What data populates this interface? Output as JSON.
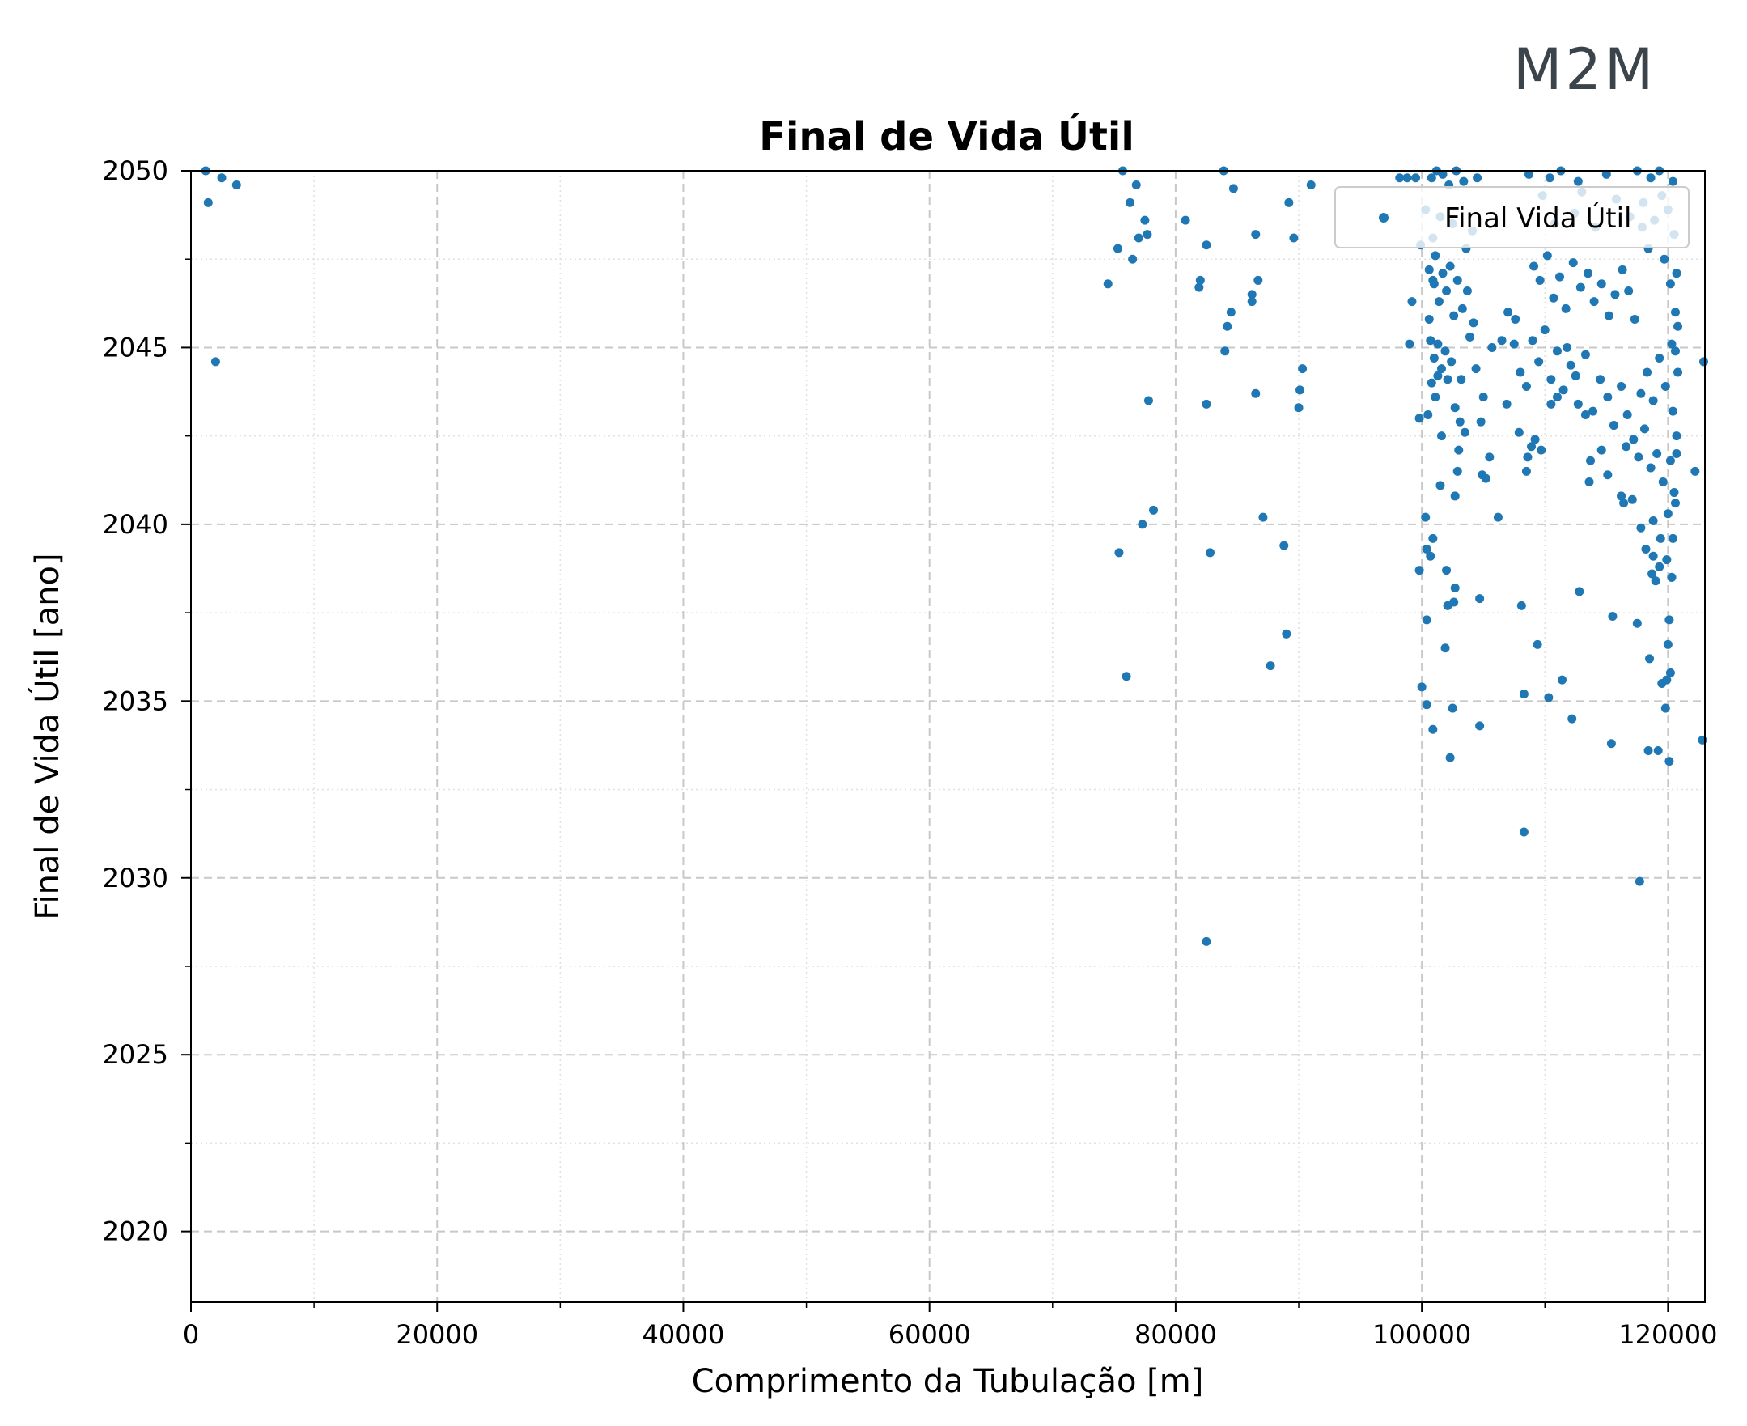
{
  "logo": {
    "text": "M2M"
  },
  "chart_data": {
    "type": "scatter",
    "title": "Final de Vida Útil",
    "xlabel": "Comprimento da Tubulação [m]",
    "ylabel": "Final de Vida Útil [ano]",
    "xlim": [
      0,
      123000
    ],
    "ylim": [
      2018,
      2050
    ],
    "xticks": [
      0,
      20000,
      40000,
      60000,
      80000,
      100000,
      120000
    ],
    "yticks": [
      2020,
      2025,
      2030,
      2035,
      2040,
      2045,
      2050
    ],
    "grid": true,
    "legend_position": "top-right",
    "color": "#1f77b4",
    "series": [
      {
        "name": "Final Vida Útil",
        "points": [
          [
            1200,
            2050
          ],
          [
            2500,
            2049.8
          ],
          [
            3700,
            2049.6
          ],
          [
            1400,
            2049.1
          ],
          [
            2000,
            2044.6
          ],
          [
            74500,
            2046.8
          ],
          [
            75300,
            2047.8
          ],
          [
            75700,
            2050
          ],
          [
            76300,
            2049.1
          ],
          [
            76500,
            2047.5
          ],
          [
            76800,
            2049.6
          ],
          [
            77000,
            2048.1
          ],
          [
            77500,
            2048.6
          ],
          [
            77700,
            2048.2
          ],
          [
            77800,
            2043.5
          ],
          [
            78200,
            2040.4
          ],
          [
            77300,
            2040
          ],
          [
            75400,
            2039.2
          ],
          [
            76000,
            2035.7
          ],
          [
            80800,
            2048.6
          ],
          [
            81900,
            2046.7
          ],
          [
            82000,
            2046.9
          ],
          [
            82500,
            2047.9
          ],
          [
            82500,
            2043.4
          ],
          [
            82800,
            2039.2
          ],
          [
            82500,
            2028.2
          ],
          [
            83900,
            2050
          ],
          [
            84200,
            2045.6
          ],
          [
            84500,
            2046
          ],
          [
            84000,
            2044.9
          ],
          [
            84700,
            2049.5
          ],
          [
            86200,
            2046.5
          ],
          [
            86200,
            2046.3
          ],
          [
            86500,
            2048.2
          ],
          [
            86700,
            2046.9
          ],
          [
            86500,
            2043.7
          ],
          [
            87100,
            2040.2
          ],
          [
            87700,
            2036
          ],
          [
            88800,
            2039.4
          ],
          [
            89000,
            2036.9
          ],
          [
            89200,
            2049.1
          ],
          [
            89600,
            2048.1
          ],
          [
            90000,
            2043.3
          ],
          [
            90100,
            2043.8
          ],
          [
            90300,
            2044.4
          ],
          [
            91000,
            2049.6
          ],
          [
            98200,
            2049.8
          ],
          [
            98800,
            2049.8
          ],
          [
            99200,
            2046.3
          ],
          [
            99000,
            2045.1
          ],
          [
            99500,
            2049.8
          ],
          [
            99800,
            2043
          ],
          [
            99800,
            2038.7
          ],
          [
            100000,
            2035.4
          ],
          [
            100300,
            2040.2
          ],
          [
            100400,
            2039.3
          ],
          [
            100400,
            2037.3
          ],
          [
            100400,
            2034.9
          ],
          [
            100700,
            2039.1
          ],
          [
            100900,
            2034.2
          ],
          [
            100900,
            2039.6
          ],
          [
            100500,
            2043.1
          ],
          [
            100600,
            2045.8
          ],
          [
            101000,
            2046.8
          ],
          [
            101300,
            2044.2
          ],
          [
            101500,
            2041.1
          ],
          [
            101600,
            2042.5
          ],
          [
            101900,
            2036.5
          ],
          [
            102000,
            2038.7
          ],
          [
            102100,
            2037.7
          ],
          [
            102300,
            2033.4
          ],
          [
            102500,
            2034.8
          ],
          [
            102600,
            2037.8
          ],
          [
            102700,
            2038.2
          ],
          [
            102700,
            2040.8
          ],
          [
            102900,
            2041.5
          ],
          [
            103000,
            2042.1
          ],
          [
            103200,
            2044.1
          ],
          [
            103500,
            2042.6
          ],
          [
            104700,
            2037.9
          ],
          [
            104700,
            2034.3
          ],
          [
            104800,
            2042.9
          ],
          [
            104900,
            2041.4
          ],
          [
            105200,
            2041.3
          ],
          [
            105500,
            2041.9
          ],
          [
            105700,
            2045
          ],
          [
            106200,
            2040.2
          ],
          [
            106500,
            2045.2
          ],
          [
            107000,
            2046
          ],
          [
            107600,
            2045.8
          ],
          [
            108100,
            2037.7
          ],
          [
            108300,
            2035.2
          ],
          [
            108300,
            2031.3
          ],
          [
            108500,
            2041.5
          ],
          [
            108600,
            2041.9
          ],
          [
            108900,
            2042.2
          ],
          [
            109200,
            2042.4
          ],
          [
            109400,
            2036.6
          ],
          [
            109700,
            2042.1
          ],
          [
            110300,
            2035.1
          ],
          [
            110500,
            2043.4
          ],
          [
            111000,
            2043.6
          ],
          [
            111400,
            2035.6
          ],
          [
            111800,
            2045
          ],
          [
            112200,
            2034.5
          ],
          [
            112800,
            2038.1
          ],
          [
            112500,
            2044.2
          ],
          [
            113300,
            2043.1
          ],
          [
            113600,
            2041.2
          ],
          [
            113700,
            2041.8
          ],
          [
            114600,
            2042.1
          ],
          [
            115100,
            2041.4
          ],
          [
            115400,
            2033.8
          ],
          [
            115500,
            2037.4
          ],
          [
            116200,
            2040.8
          ],
          [
            116400,
            2040.6
          ],
          [
            117500,
            2037.2
          ],
          [
            117700,
            2029.9
          ],
          [
            117800,
            2039.9
          ],
          [
            118400,
            2033.6
          ],
          [
            118500,
            2036.2
          ],
          [
            118800,
            2040.1
          ],
          [
            118800,
            2039.1
          ],
          [
            119000,
            2038.4
          ],
          [
            119200,
            2033.6
          ],
          [
            119300,
            2038.8
          ],
          [
            119500,
            2035.5
          ],
          [
            119800,
            2034.8
          ],
          [
            119900,
            2035.6
          ],
          [
            120000,
            2036.6
          ],
          [
            120100,
            2037.3
          ],
          [
            120200,
            2035.8
          ],
          [
            120300,
            2038.5
          ],
          [
            120400,
            2039.6
          ],
          [
            120600,
            2040.6
          ],
          [
            120700,
            2042
          ],
          [
            120800,
            2044.3
          ],
          [
            120100,
            2033.3
          ],
          [
            122200,
            2041.5
          ],
          [
            122900,
            2044.6
          ],
          [
            122800,
            2033.9
          ],
          [
            100800,
            2049.8
          ],
          [
            101200,
            2050
          ],
          [
            101700,
            2049.9
          ],
          [
            102200,
            2049.6
          ],
          [
            102800,
            2050
          ],
          [
            103400,
            2049.7
          ],
          [
            104500,
            2049.8
          ],
          [
            108700,
            2049.9
          ],
          [
            110400,
            2049.8
          ],
          [
            111300,
            2050
          ],
          [
            112700,
            2049.7
          ],
          [
            115000,
            2049.9
          ],
          [
            117500,
            2050
          ],
          [
            118600,
            2049.8
          ],
          [
            119300,
            2050
          ],
          [
            120400,
            2049.7
          ],
          [
            100600,
            2047.2
          ],
          [
            100900,
            2046.9
          ],
          [
            101100,
            2047.6
          ],
          [
            101400,
            2046.3
          ],
          [
            101700,
            2047.1
          ],
          [
            102000,
            2046.6
          ],
          [
            102300,
            2047.3
          ],
          [
            102600,
            2045.9
          ],
          [
            102900,
            2046.9
          ],
          [
            103300,
            2046.1
          ],
          [
            103700,
            2046.6
          ],
          [
            104200,
            2045.7
          ],
          [
            100700,
            2045.2
          ],
          [
            101000,
            2044.7
          ],
          [
            101300,
            2045.1
          ],
          [
            101600,
            2044.4
          ],
          [
            101900,
            2044.9
          ],
          [
            102100,
            2044.1
          ],
          [
            102400,
            2044.6
          ],
          [
            100800,
            2044
          ],
          [
            101100,
            2043.6
          ],
          [
            102700,
            2043.3
          ],
          [
            103100,
            2042.9
          ],
          [
            109100,
            2047.3
          ],
          [
            109600,
            2046.9
          ],
          [
            110200,
            2047.6
          ],
          [
            110700,
            2046.4
          ],
          [
            111200,
            2047
          ],
          [
            111700,
            2046.1
          ],
          [
            112300,
            2047.4
          ],
          [
            112900,
            2046.7
          ],
          [
            113500,
            2047.1
          ],
          [
            114000,
            2046.3
          ],
          [
            114600,
            2046.8
          ],
          [
            115200,
            2045.9
          ],
          [
            115700,
            2046.5
          ],
          [
            116300,
            2047.2
          ],
          [
            116800,
            2046.6
          ],
          [
            117300,
            2045.8
          ],
          [
            109000,
            2045.2
          ],
          [
            109500,
            2044.6
          ],
          [
            110000,
            2045.5
          ],
          [
            110500,
            2044.1
          ],
          [
            111000,
            2044.9
          ],
          [
            111500,
            2043.8
          ],
          [
            112100,
            2044.5
          ],
          [
            112700,
            2043.4
          ],
          [
            113300,
            2044.8
          ],
          [
            113900,
            2043.2
          ],
          [
            114500,
            2044.1
          ],
          [
            115100,
            2043.6
          ],
          [
            115600,
            2042.8
          ],
          [
            116200,
            2043.9
          ],
          [
            116700,
            2043.1
          ],
          [
            117200,
            2042.4
          ],
          [
            117800,
            2043.7
          ],
          [
            118300,
            2044.3
          ],
          [
            118800,
            2043.5
          ],
          [
            119300,
            2044.7
          ],
          [
            119800,
            2043.9
          ],
          [
            120300,
            2045.1
          ],
          [
            120600,
            2046
          ],
          [
            120200,
            2046.8
          ],
          [
            119700,
            2047.5
          ],
          [
            120500,
            2048.2
          ],
          [
            120000,
            2048.9
          ],
          [
            119500,
            2049.3
          ],
          [
            118900,
            2048.6
          ],
          [
            118400,
            2047.8
          ],
          [
            117900,
            2048.4
          ],
          [
            120700,
            2047.1
          ],
          [
            120800,
            2045.6
          ],
          [
            120600,
            2044.9
          ],
          [
            120400,
            2043.2
          ],
          [
            120700,
            2042.5
          ],
          [
            120200,
            2041.8
          ],
          [
            120500,
            2040.9
          ],
          [
            120000,
            2040.3
          ],
          [
            119600,
            2041.2
          ],
          [
            119100,
            2042
          ],
          [
            118600,
            2041.6
          ],
          [
            118100,
            2042.7
          ],
          [
            117600,
            2041.9
          ],
          [
            117100,
            2040.7
          ],
          [
            116600,
            2042.2
          ],
          [
            119400,
            2039.6
          ],
          [
            119900,
            2039
          ],
          [
            120300,
            2038.5
          ],
          [
            118700,
            2038.6
          ],
          [
            118200,
            2039.3
          ],
          [
            107500,
            2045.1
          ],
          [
            108000,
            2044.3
          ],
          [
            108500,
            2043.9
          ],
          [
            107900,
            2042.6
          ],
          [
            106900,
            2043.4
          ],
          [
            103900,
            2045.3
          ],
          [
            104400,
            2044.4
          ],
          [
            105000,
            2043.6
          ],
          [
            103600,
            2047.8
          ],
          [
            104100,
            2048.3
          ],
          [
            101500,
            2048.7
          ],
          [
            100900,
            2048.1
          ],
          [
            102500,
            2048.5
          ],
          [
            99900,
            2047.9
          ],
          [
            100300,
            2048.9
          ],
          [
            110800,
            2048.5
          ],
          [
            112400,
            2048.8
          ],
          [
            114100,
            2048.4
          ],
          [
            115800,
            2049.2
          ],
          [
            116900,
            2048.7
          ],
          [
            118000,
            2049.1
          ],
          [
            113000,
            2049.4
          ],
          [
            109800,
            2049.3
          ]
        ]
      }
    ]
  }
}
